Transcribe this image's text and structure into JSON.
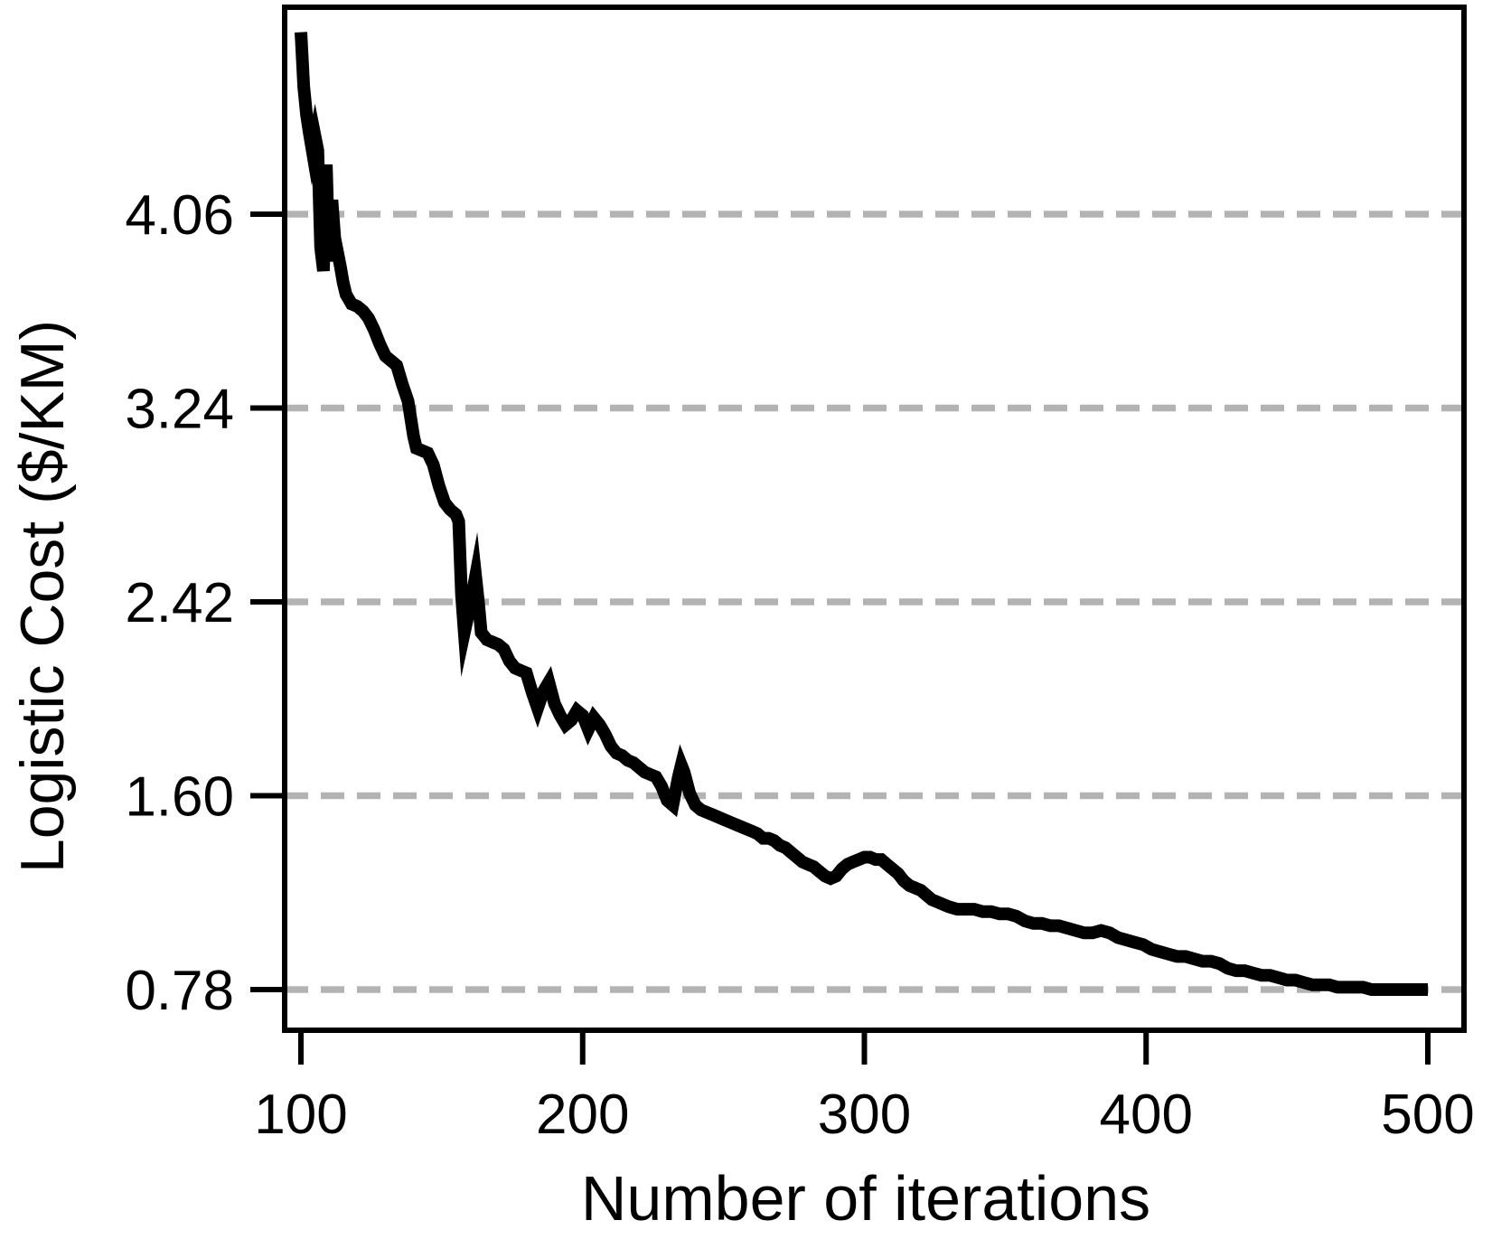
{
  "figure": {
    "background": "#ffffff"
  },
  "chart_data": {
    "type": "line",
    "title": "",
    "xlabel": "Number of iterations",
    "ylabel": "Logistic Cost ($/KM)",
    "x_tick_labels": [
      "100",
      "200",
      "300",
      "400",
      "500"
    ],
    "x_tick_values": [
      100,
      200,
      300,
      400,
      500
    ],
    "y_tick_labels": [
      "4.06",
      "3.24",
      "2.42",
      "1.60",
      "0.78"
    ],
    "y_tick_values": [
      4.06,
      3.24,
      2.42,
      1.6,
      0.78
    ],
    "x_range": [
      100,
      500
    ],
    "xlim": [
      94,
      513
    ],
    "ylim": [
      0.61,
      4.93
    ],
    "grid": {
      "horizontal": true,
      "vertical": false,
      "style": "dashed",
      "color": "#b3b3b3"
    },
    "legend": "none",
    "colors": {
      "line": "#000000",
      "axis": "#000000",
      "text": "#000000",
      "grid": "#b3b3b3",
      "background": "#ffffff"
    },
    "series": [
      {
        "points": [
          [
            100,
            4.83
          ],
          [
            101,
            4.6
          ],
          [
            102,
            4.48
          ],
          [
            103,
            4.4
          ],
          [
            104,
            4.33
          ],
          [
            105,
            4.39
          ],
          [
            106,
            4.33
          ],
          [
            107,
            3.92
          ],
          [
            108,
            3.82
          ],
          [
            109,
            4.27
          ],
          [
            110,
            3.86
          ],
          [
            111,
            4.12
          ],
          [
            112,
            3.96
          ],
          [
            113,
            3.9
          ],
          [
            114,
            3.84
          ],
          [
            115,
            3.77
          ],
          [
            116,
            3.72
          ],
          [
            118,
            3.68
          ],
          [
            120,
            3.67
          ],
          [
            122,
            3.65
          ],
          [
            124,
            3.62
          ],
          [
            126,
            3.57
          ],
          [
            128,
            3.51
          ],
          [
            130,
            3.46
          ],
          [
            132,
            3.44
          ],
          [
            134,
            3.42
          ],
          [
            136,
            3.34
          ],
          [
            138,
            3.27
          ],
          [
            140,
            3.12
          ],
          [
            141,
            3.07
          ],
          [
            143,
            3.06
          ],
          [
            145,
            3.05
          ],
          [
            147,
            3.0
          ],
          [
            149,
            2.91
          ],
          [
            151,
            2.84
          ],
          [
            153,
            2.81
          ],
          [
            155,
            2.79
          ],
          [
            156,
            2.76
          ],
          [
            157,
            2.45
          ],
          [
            158,
            2.29
          ],
          [
            160,
            2.4
          ],
          [
            162,
            2.53
          ],
          [
            163,
            2.42
          ],
          [
            164,
            2.29
          ],
          [
            166,
            2.26
          ],
          [
            168,
            2.25
          ],
          [
            170,
            2.24
          ],
          [
            172,
            2.22
          ],
          [
            174,
            2.17
          ],
          [
            176,
            2.14
          ],
          [
            178,
            2.13
          ],
          [
            180,
            2.12
          ],
          [
            182,
            2.04
          ],
          [
            184,
            1.97
          ],
          [
            186,
            2.04
          ],
          [
            188,
            2.08
          ],
          [
            190,
            1.99
          ],
          [
            192,
            1.94
          ],
          [
            194,
            1.9
          ],
          [
            196,
            1.92
          ],
          [
            198,
            1.96
          ],
          [
            200,
            1.94
          ],
          [
            202,
            1.88
          ],
          [
            204,
            1.93
          ],
          [
            206,
            1.9
          ],
          [
            208,
            1.86
          ],
          [
            210,
            1.81
          ],
          [
            212,
            1.78
          ],
          [
            214,
            1.77
          ],
          [
            216,
            1.75
          ],
          [
            218,
            1.74
          ],
          [
            220,
            1.72
          ],
          [
            222,
            1.7
          ],
          [
            224,
            1.69
          ],
          [
            226,
            1.68
          ],
          [
            228,
            1.64
          ],
          [
            230,
            1.58
          ],
          [
            232,
            1.56
          ],
          [
            234,
            1.68
          ],
          [
            235,
            1.73
          ],
          [
            236,
            1.7
          ],
          [
            238,
            1.61
          ],
          [
            240,
            1.56
          ],
          [
            242,
            1.54
          ],
          [
            244,
            1.53
          ],
          [
            246,
            1.52
          ],
          [
            248,
            1.51
          ],
          [
            250,
            1.5
          ],
          [
            252,
            1.49
          ],
          [
            254,
            1.48
          ],
          [
            256,
            1.47
          ],
          [
            258,
            1.46
          ],
          [
            260,
            1.45
          ],
          [
            262,
            1.44
          ],
          [
            264,
            1.42
          ],
          [
            266,
            1.42
          ],
          [
            268,
            1.41
          ],
          [
            270,
            1.39
          ],
          [
            272,
            1.38
          ],
          [
            274,
            1.36
          ],
          [
            276,
            1.34
          ],
          [
            278,
            1.32
          ],
          [
            280,
            1.31
          ],
          [
            282,
            1.3
          ],
          [
            284,
            1.28
          ],
          [
            286,
            1.26
          ],
          [
            288,
            1.25
          ],
          [
            290,
            1.26
          ],
          [
            292,
            1.29
          ],
          [
            294,
            1.31
          ],
          [
            296,
            1.32
          ],
          [
            298,
            1.33
          ],
          [
            300,
            1.34
          ],
          [
            302,
            1.34
          ],
          [
            304,
            1.33
          ],
          [
            306,
            1.33
          ],
          [
            308,
            1.31
          ],
          [
            310,
            1.29
          ],
          [
            312,
            1.27
          ],
          [
            314,
            1.24
          ],
          [
            316,
            1.22
          ],
          [
            318,
            1.21
          ],
          [
            320,
            1.2
          ],
          [
            322,
            1.18
          ],
          [
            324,
            1.16
          ],
          [
            326,
            1.15
          ],
          [
            328,
            1.14
          ],
          [
            330,
            1.13
          ],
          [
            333,
            1.12
          ],
          [
            336,
            1.12
          ],
          [
            339,
            1.12
          ],
          [
            342,
            1.11
          ],
          [
            345,
            1.11
          ],
          [
            348,
            1.1
          ],
          [
            351,
            1.1
          ],
          [
            354,
            1.09
          ],
          [
            357,
            1.07
          ],
          [
            360,
            1.06
          ],
          [
            363,
            1.06
          ],
          [
            366,
            1.05
          ],
          [
            369,
            1.05
          ],
          [
            372,
            1.04
          ],
          [
            375,
            1.03
          ],
          [
            378,
            1.02
          ],
          [
            381,
            1.02
          ],
          [
            384,
            1.03
          ],
          [
            387,
            1.02
          ],
          [
            390,
            1.0
          ],
          [
            393,
            0.99
          ],
          [
            396,
            0.98
          ],
          [
            399,
            0.97
          ],
          [
            402,
            0.95
          ],
          [
            405,
            0.94
          ],
          [
            408,
            0.93
          ],
          [
            411,
            0.92
          ],
          [
            414,
            0.92
          ],
          [
            417,
            0.91
          ],
          [
            420,
            0.9
          ],
          [
            423,
            0.9
          ],
          [
            426,
            0.89
          ],
          [
            429,
            0.87
          ],
          [
            432,
            0.86
          ],
          [
            435,
            0.86
          ],
          [
            438,
            0.85
          ],
          [
            441,
            0.84
          ],
          [
            444,
            0.84
          ],
          [
            447,
            0.83
          ],
          [
            450,
            0.82
          ],
          [
            453,
            0.82
          ],
          [
            456,
            0.81
          ],
          [
            459,
            0.8
          ],
          [
            462,
            0.8
          ],
          [
            465,
            0.8
          ],
          [
            468,
            0.79
          ],
          [
            471,
            0.79
          ],
          [
            474,
            0.79
          ],
          [
            477,
            0.79
          ],
          [
            480,
            0.78
          ],
          [
            483,
            0.78
          ],
          [
            486,
            0.78
          ],
          [
            489,
            0.78
          ],
          [
            492,
            0.78
          ],
          [
            495,
            0.78
          ],
          [
            498,
            0.78
          ],
          [
            500,
            0.78
          ]
        ]
      }
    ]
  }
}
